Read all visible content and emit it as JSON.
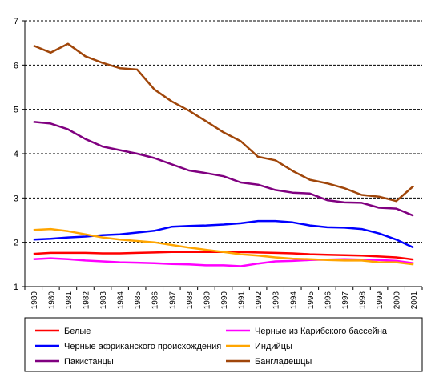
{
  "chart_data": {
    "type": "line",
    "title": "",
    "xlabel": "",
    "ylabel": "",
    "x": [
      "1980",
      "1980",
      "1981",
      "1982",
      "1983",
      "1984",
      "1985",
      "1986",
      "1987",
      "1988",
      "1989",
      "1990",
      "1991",
      "1992",
      "1993",
      "1994",
      "1995",
      "1996",
      "1997",
      "1998",
      "1999",
      "2000",
      "2001"
    ],
    "ylim": [
      1,
      7
    ],
    "yticks": [
      "1",
      "2",
      "3",
      "4",
      "5",
      "6",
      "7"
    ],
    "grid": "horizontal dashed",
    "legend_position": "bottom",
    "series": [
      {
        "name": "Белые",
        "color": "#ff0000",
        "values": [
          1.74,
          1.76,
          1.76,
          1.76,
          1.75,
          1.75,
          1.76,
          1.77,
          1.78,
          1.78,
          1.78,
          1.78,
          1.78,
          1.77,
          1.76,
          1.75,
          1.73,
          1.72,
          1.71,
          1.7,
          1.68,
          1.66,
          1.61
        ]
      },
      {
        "name": "Черные из Карибского бассейна",
        "color": "#ff00ff",
        "values": [
          1.62,
          1.64,
          1.62,
          1.59,
          1.57,
          1.55,
          1.54,
          1.53,
          1.51,
          1.5,
          1.48,
          1.48,
          1.46,
          1.52,
          1.57,
          1.58,
          1.6,
          1.61,
          1.62,
          1.61,
          1.6,
          1.58,
          1.53
        ]
      },
      {
        "name": "Черные африканского происхождения",
        "color": "#0000ff",
        "values": [
          2.06,
          2.08,
          2.11,
          2.13,
          2.16,
          2.18,
          2.22,
          2.26,
          2.35,
          2.37,
          2.38,
          2.4,
          2.43,
          2.48,
          2.48,
          2.45,
          2.38,
          2.34,
          2.33,
          2.3,
          2.2,
          2.06,
          1.88
        ]
      },
      {
        "name": "Индийцы",
        "color": "#ffa500",
        "values": [
          2.28,
          2.3,
          2.25,
          2.18,
          2.11,
          2.06,
          2.03,
          2.0,
          1.94,
          1.88,
          1.83,
          1.78,
          1.73,
          1.7,
          1.66,
          1.63,
          1.62,
          1.6,
          1.59,
          1.59,
          1.55,
          1.55,
          1.5
        ]
      },
      {
        "name": "Пакистанцы",
        "color": "#800080",
        "values": [
          4.72,
          4.68,
          4.55,
          4.33,
          4.16,
          4.08,
          4.0,
          3.9,
          3.76,
          3.62,
          3.56,
          3.49,
          3.35,
          3.3,
          3.18,
          3.12,
          3.1,
          2.95,
          2.9,
          2.89,
          2.78,
          2.76,
          2.6
        ]
      },
      {
        "name": "Бангладешцы",
        "color": "#a0460a",
        "values": [
          6.44,
          6.28,
          6.48,
          6.2,
          6.05,
          5.93,
          5.9,
          5.45,
          5.18,
          4.97,
          4.73,
          4.48,
          4.28,
          3.93,
          3.85,
          3.61,
          3.41,
          3.33,
          3.22,
          3.07,
          3.03,
          2.93,
          3.27
        ]
      }
    ]
  }
}
